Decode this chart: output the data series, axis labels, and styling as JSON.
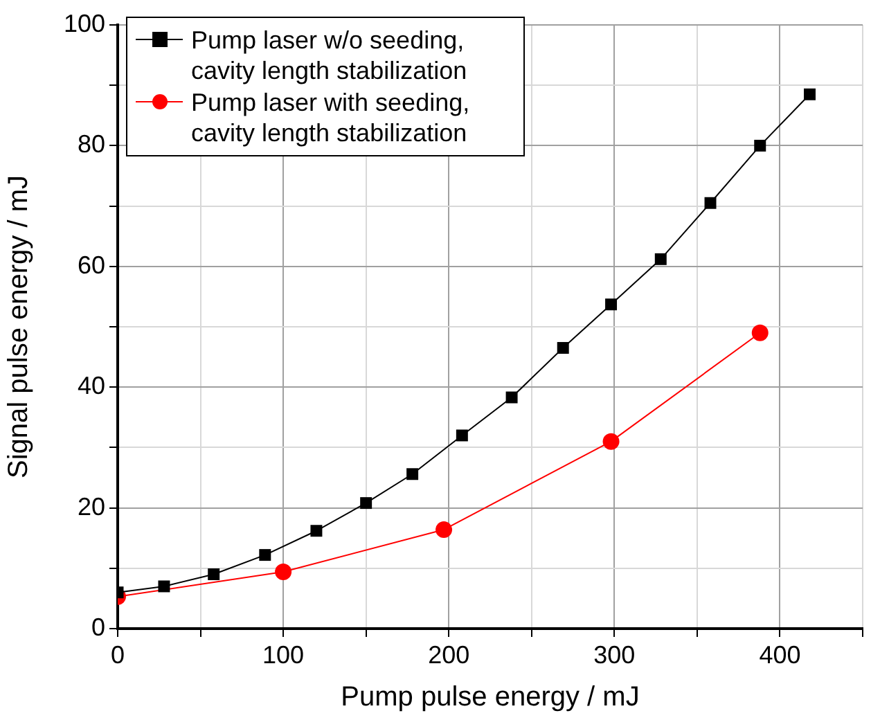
{
  "chart_data": {
    "type": "line",
    "xlabel": "Pump pulse energy / mJ",
    "ylabel": "Signal pulse energy / mJ",
    "xlim": [
      0,
      450
    ],
    "xticks": [
      0,
      {
        "value": 50,
        "label": null
      },
      100,
      {
        "value": 150,
        "label": null
      },
      200,
      {
        "value": 250,
        "label": null
      },
      300,
      {
        "value": 350,
        "label": null
      },
      400,
      {
        "value": 450,
        "label": null
      }
    ],
    "ylim": [
      0,
      100
    ],
    "yticks": [
      0,
      {
        "value": 10,
        "label": null
      },
      20,
      {
        "value": 30,
        "label": null
      },
      40,
      {
        "value": 50,
        "label": null
      },
      60,
      {
        "value": 70,
        "label": null
      },
      80,
      {
        "value": 90,
        "label": null
      },
      100
    ],
    "grid": true,
    "legend": "top left",
    "series": [
      {
        "name": "Pump laser w/o seeding, cavity length stabilization",
        "color": "#000000",
        "marker": "square",
        "x": [
          0,
          28,
          58,
          89,
          120,
          150,
          178,
          208,
          238,
          269,
          298,
          328,
          358,
          388,
          418
        ],
        "values": [
          6,
          7,
          9,
          12.2,
          16.2,
          20.8,
          25.6,
          32,
          38.3,
          46.5,
          53.7,
          61.2,
          70.5,
          80,
          88.5
        ]
      },
      {
        "name": "Pump laser with seeding, cavity length stabilization",
        "color": "#ff0000",
        "marker": "circle",
        "x": [
          0,
          100,
          197,
          298,
          388
        ],
        "values": [
          5.3,
          9.4,
          16.4,
          31,
          49
        ]
      }
    ]
  }
}
